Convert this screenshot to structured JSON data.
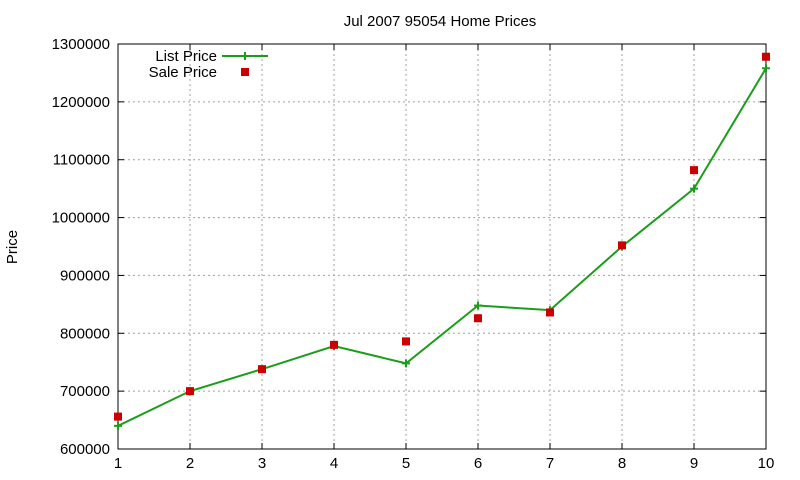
{
  "chart_data": {
    "type": "line",
    "title": "Jul 2007 95054 Home Prices",
    "xlabel": "",
    "ylabel": "Price",
    "x": [
      1,
      2,
      3,
      4,
      5,
      6,
      7,
      8,
      9,
      10
    ],
    "xlim": [
      1,
      10
    ],
    "ylim": [
      600000,
      1300000
    ],
    "yticks": [
      600000,
      700000,
      800000,
      900000,
      1000000,
      1100000,
      1200000,
      1300000
    ],
    "xticks": [
      1,
      2,
      3,
      4,
      5,
      6,
      7,
      8,
      9,
      10
    ],
    "grid": true,
    "legend_position": "top-left",
    "series": [
      {
        "name": "List Price",
        "style": "line-with-plus-markers",
        "color": "#1a9e1a",
        "values": [
          640000,
          700000,
          738000,
          778000,
          748000,
          848000,
          840000,
          950000,
          1050000,
          1258000
        ]
      },
      {
        "name": "Sale Price",
        "style": "square-markers",
        "color": "#cc0000",
        "values": [
          656000,
          700000,
          738000,
          780000,
          786000,
          826000,
          836000,
          952000,
          1082000,
          1278000
        ]
      }
    ]
  }
}
